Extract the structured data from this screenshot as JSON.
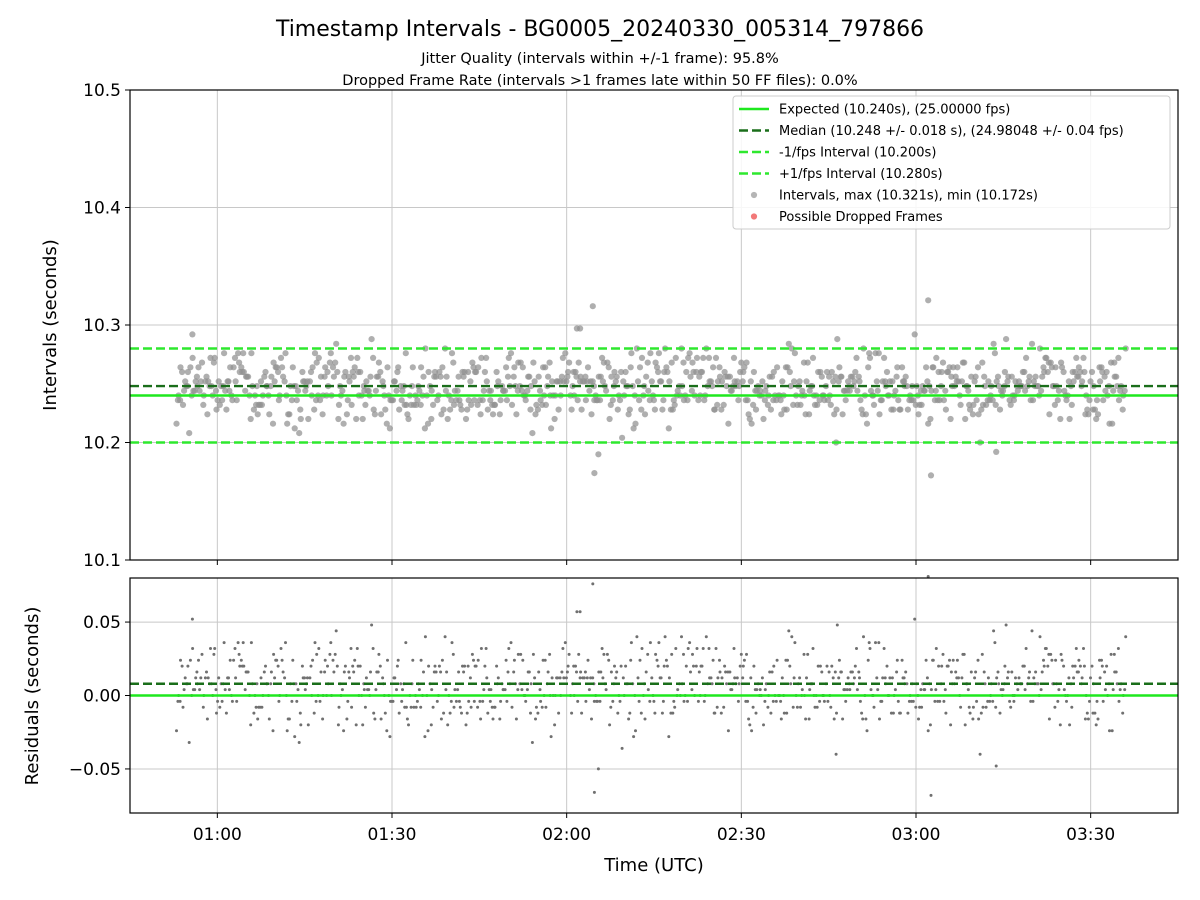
{
  "chart_data": {
    "type": "scatter",
    "title": "Timestamp Intervals - BG0005_20240330_005314_797866",
    "subtitle_lines": [
      "Jitter Quality (intervals within +/-1 frame): 95.8%",
      "Dropped Frame Rate (intervals >1 frames late within 50 FF files): 0.0%"
    ],
    "xlabel": "Time (UTC)",
    "x_range": [
      "00:45",
      "03:45"
    ],
    "x_ticks": [
      {
        "value": "01:00",
        "label": "01:00"
      },
      {
        "value": "01:30",
        "label": "01:30"
      },
      {
        "value": "02:00",
        "label": "02:00"
      },
      {
        "value": "02:30",
        "label": "02:30"
      },
      {
        "value": "03:00",
        "label": "03:00"
      },
      {
        "value": "03:30",
        "label": "03:30"
      }
    ],
    "grid": true,
    "legend_position": "top-right",
    "colors": {
      "expected": "#1ee81e",
      "median": "#1a6e1a",
      "bounds": "#2ee82e",
      "points": "#909090",
      "residual_points": "#707070",
      "dropped": "#f06060"
    },
    "top_panel": {
      "ylabel": "Intervals (seconds)",
      "ylim": [
        10.1,
        10.5
      ],
      "y_ticks": [
        "10.1",
        "10.2",
        "10.3",
        "10.4",
        "10.5"
      ],
      "expected": 10.24,
      "median": 10.248,
      "lower_bound": 10.2,
      "upper_bound": 10.28,
      "max": 10.321,
      "min": 10.172,
      "legend": [
        {
          "label": "Expected (10.240s), (25.00000 fps)",
          "style": "solid",
          "color": "#1ee81e"
        },
        {
          "label": "Median (10.248 +/- 0.018 s), (24.98048 +/- 0.04 fps)",
          "style": "dashed",
          "color": "#1a6e1a"
        },
        {
          "label": "-1/fps Interval (10.200s)",
          "style": "dashed",
          "color": "#2ee82e"
        },
        {
          "label": "+1/fps Interval (10.280s)",
          "style": "dashed",
          "color": "#2ee82e"
        },
        {
          "label": "Intervals, max (10.321s), min (10.172s)",
          "style": "marker",
          "color": "#a8a8a8"
        },
        {
          "label": "Possible Dropped Frames",
          "style": "marker",
          "color": "#f06060"
        }
      ],
      "series": [
        {
          "name": "Intervals, max (10.321s), min (10.172s)",
          "x_start": "00:53",
          "x_end": "03:36",
          "count": 900,
          "center": 10.248,
          "spread": 0.018,
          "outliers": [
            [
              "02:01",
              10.297
            ],
            [
              "02:02",
              10.297
            ],
            [
              "02:04",
              10.316
            ],
            [
              "02:04",
              10.174
            ],
            [
              "02:05",
              10.19
            ],
            [
              "03:02",
              10.321
            ],
            [
              "03:02",
              10.172
            ],
            [
              "00:55",
              10.292
            ],
            [
              "02:46",
              10.2
            ],
            [
              "03:13",
              10.192
            ]
          ]
        },
        {
          "name": "Possible Dropped Frames",
          "points": []
        }
      ]
    },
    "bottom_panel": {
      "ylabel": "Residuals (seconds)",
      "ylim": [
        -0.08,
        0.08
      ],
      "y_ticks": [
        "−0.05",
        "0.00",
        "0.05"
      ],
      "y_tick_values": [
        -0.05,
        0.0,
        0.05
      ],
      "zero_line": 0.0,
      "median_line": 0.008
    }
  }
}
